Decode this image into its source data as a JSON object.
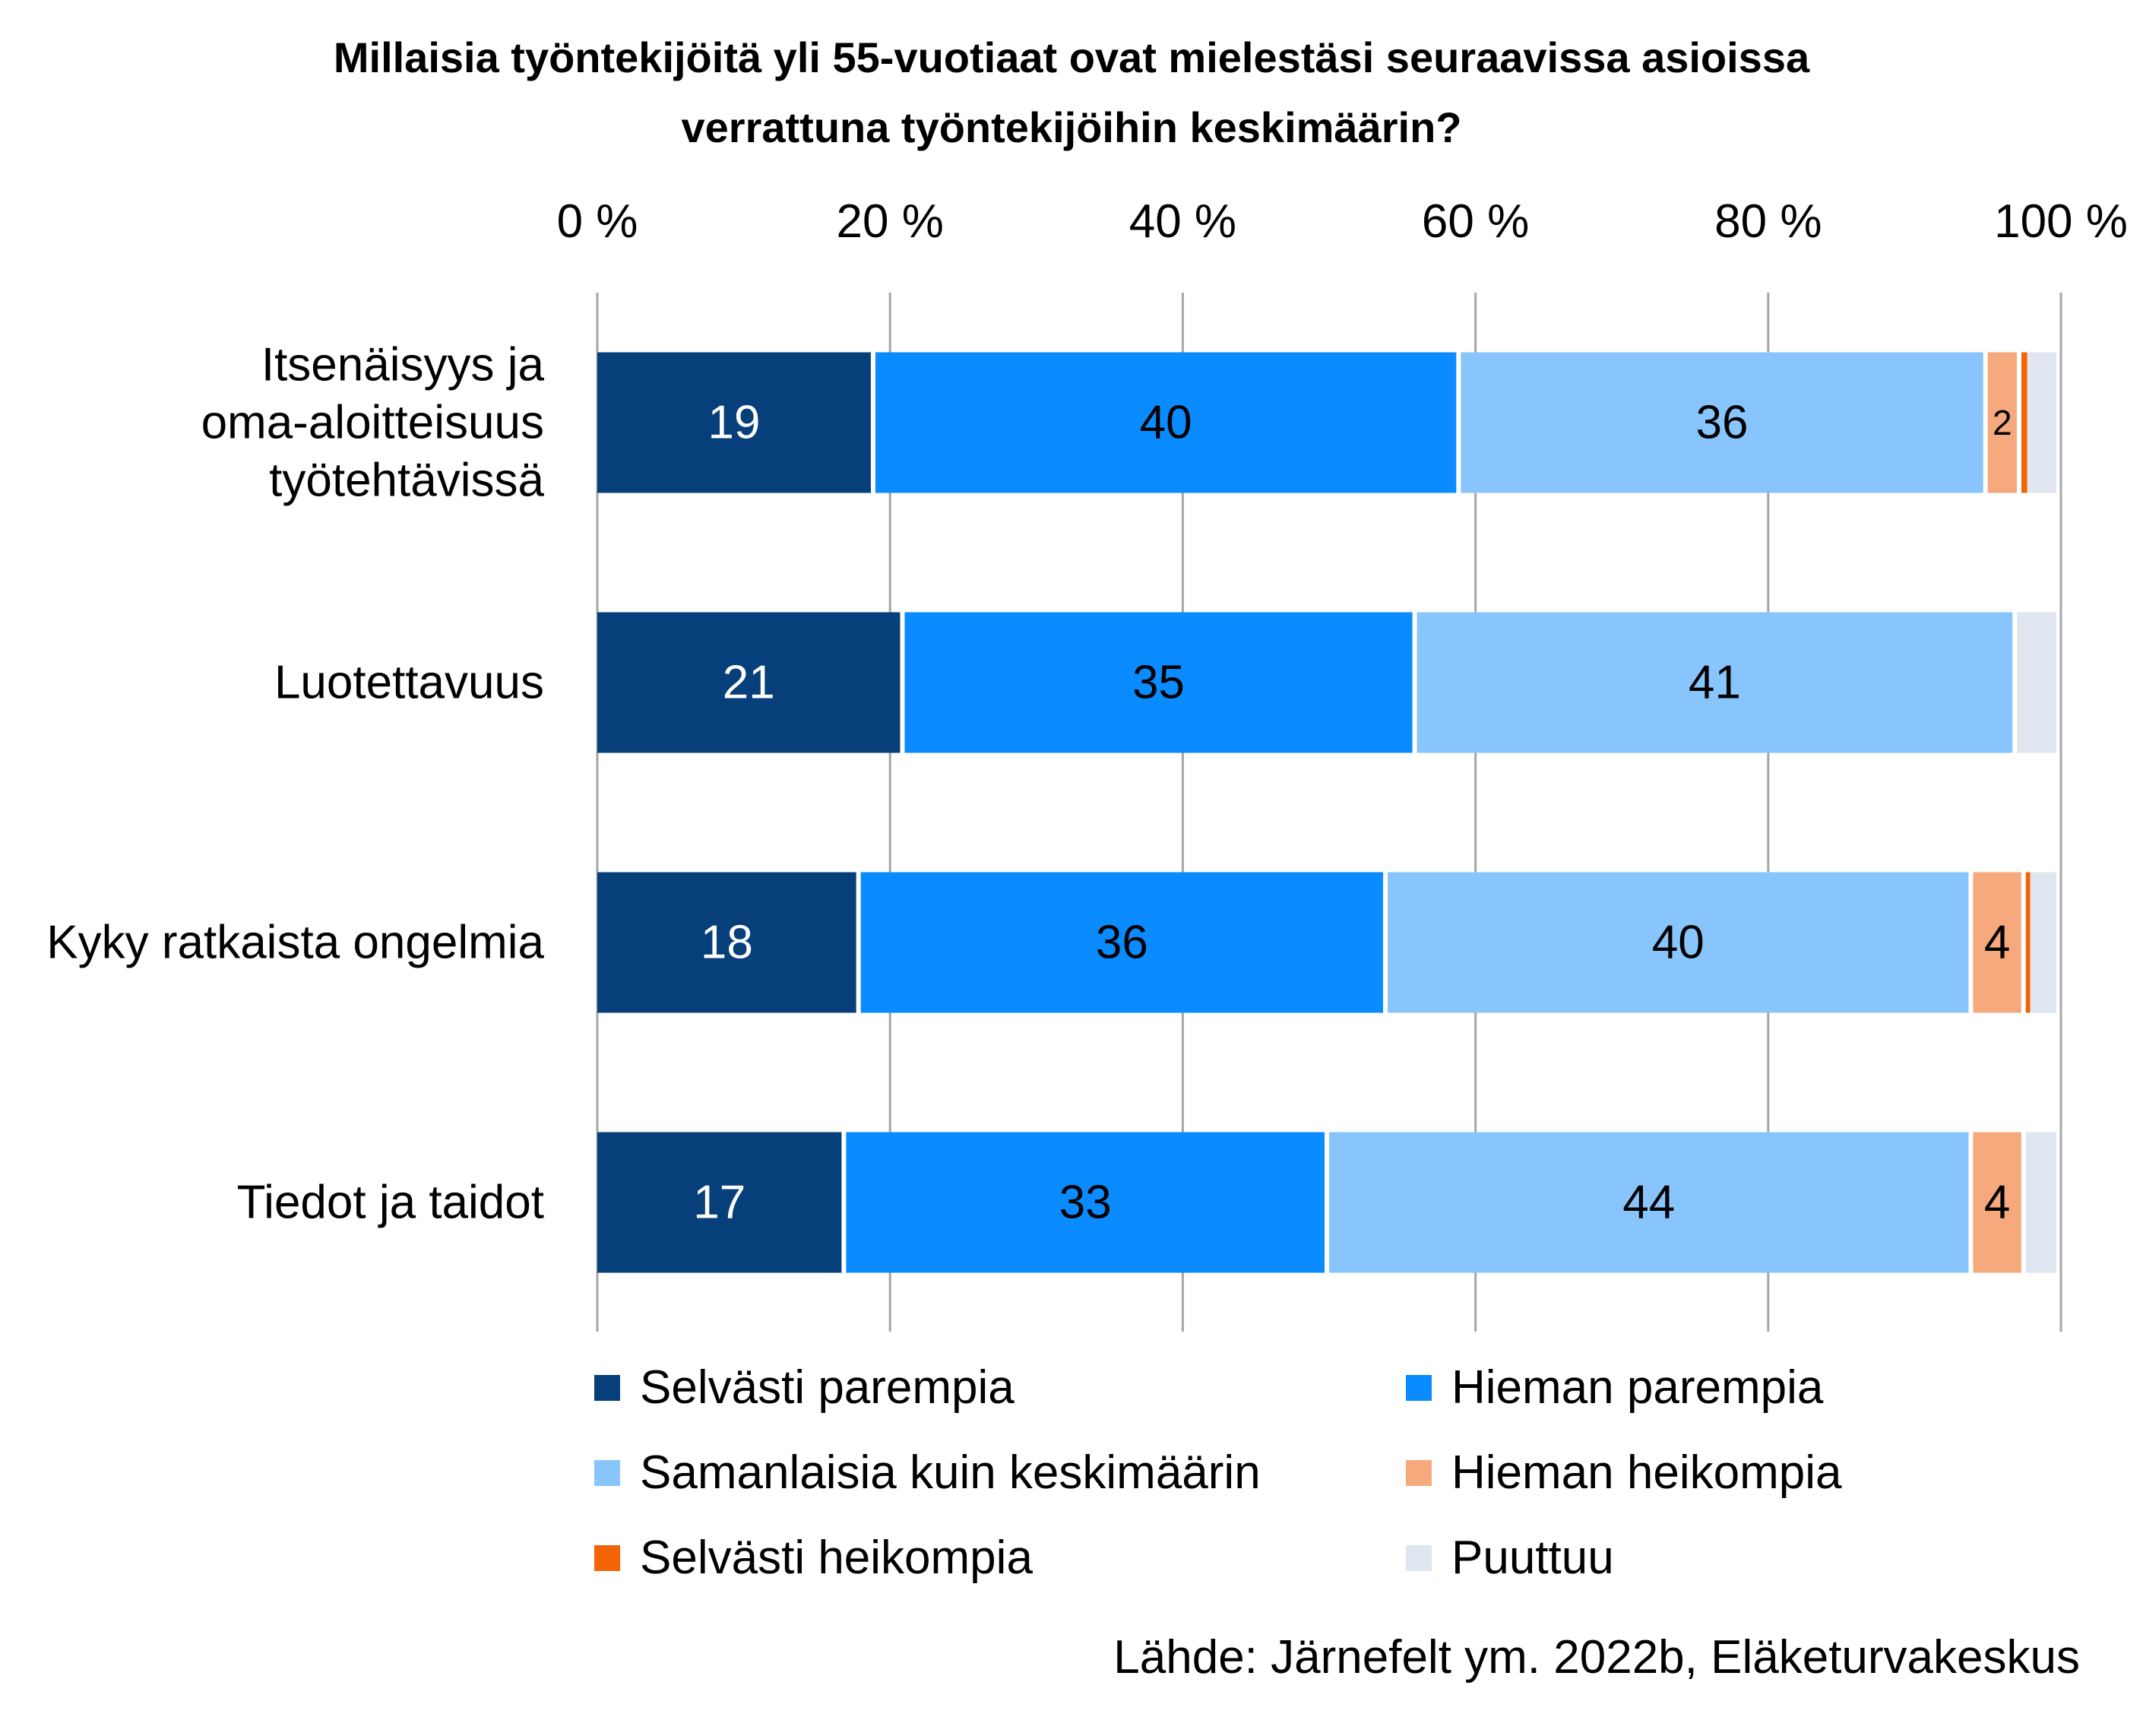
{
  "chart_data": {
    "type": "bar",
    "orientation": "horizontal",
    "stacked": true,
    "title": "Millaisia työntekijöitä yli 55-vuotiaat ovat mielestäsi seuraavissa asioissa verrattuna työntekijöihin keskimäärin?",
    "title_lines": [
      "Millaisia työntekijöitä yli 55-vuotiaat ovat mielestäsi seuraavissa asioissa",
      "verrattuna työntekijöihin keskimäärin?"
    ],
    "xlim": [
      0,
      100
    ],
    "x_ticks": [
      "0 %",
      "20 %",
      "40 %",
      "60 %",
      "80 %",
      "100 %"
    ],
    "grid": true,
    "legend_position": "bottom",
    "categories": [
      "Itsenäisyys ja oma-aloitteisuus työtehtävissä",
      "Luotettavuus",
      "Kyky ratkaista ongelmia",
      "Tiedot ja taidot"
    ],
    "category_lines": [
      [
        "Itsenäisyys ja",
        "oma-aloitteisuus",
        "työtehtävissä"
      ],
      [
        "Luotettavuus"
      ],
      [
        "Kyky ratkaista ongelmia"
      ],
      [
        "Tiedot ja taidot"
      ]
    ],
    "series": [
      {
        "name": "Selvästi parempia",
        "color": "#063f7a",
        "label_color": "#ffffff",
        "values": [
          19,
          21,
          18,
          17
        ],
        "labels": [
          "19",
          "21",
          "18",
          "17"
        ]
      },
      {
        "name": "Hieman parempia",
        "color": "#0a8bff",
        "label_color": "#000000",
        "values": [
          40,
          35,
          36,
          33
        ],
        "labels": [
          "40",
          "35",
          "36",
          "33"
        ]
      },
      {
        "name": "Samanlaisia kuin keskimäärin",
        "color": "#88c5fd",
        "label_color": "#000000",
        "values": [
          36,
          41,
          40,
          44
        ],
        "labels": [
          "36",
          "41",
          "40",
          "44"
        ]
      },
      {
        "name": "Hieman heikompia",
        "color": "#f6a97d",
        "label_color": "#000000",
        "values": [
          2.3,
          0,
          3.6,
          3.6
        ],
        "labels": [
          "2",
          "",
          "4",
          "4"
        ]
      },
      {
        "name": "Selvästi heikompia",
        "color": "#f26405",
        "label_color": "#000000",
        "values": [
          0.4,
          0,
          0.3,
          0
        ],
        "labels": [
          "",
          "",
          "",
          ""
        ]
      },
      {
        "name": "Puuttuu",
        "color": "#dfe6ef",
        "label_color": "#000000",
        "values": [
          2.3,
          3,
          2.1,
          2.4
        ],
        "labels": [
          "",
          "",
          "",
          ""
        ]
      }
    ]
  },
  "source": "Lähde: Järnefelt ym. 2022b, Eläketurvakeskus"
}
